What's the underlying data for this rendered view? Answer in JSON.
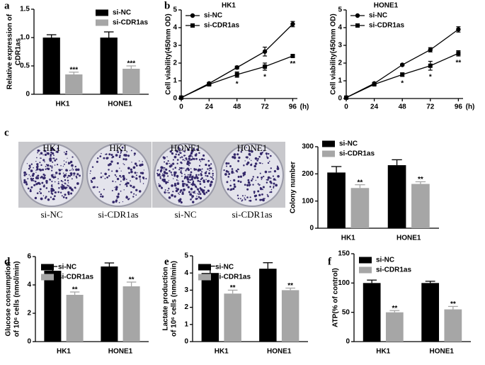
{
  "chart_data": [
    {
      "type": "bar",
      "panel": "a",
      "ylabel": [
        "Relative expression of",
        "CDR1as"
      ],
      "categories": [
        "HK1",
        "HONE1"
      ],
      "series": [
        {
          "name": "si-NC",
          "color": "#000000",
          "values": [
            1.0,
            1.0
          ],
          "errors": [
            0.05,
            0.1
          ]
        },
        {
          "name": "si-CDR1as",
          "color": "#a6a6a6",
          "values": [
            0.35,
            0.45
          ],
          "errors": [
            0.04,
            0.05
          ],
          "significance": [
            "***",
            "***"
          ]
        }
      ],
      "ylim": [
        0,
        1.5
      ],
      "yticks": [
        0,
        0.5,
        {
          "value": 1,
          "label": "1.0"
        },
        1.5
      ]
    },
    {
      "type": "line",
      "panel": "b",
      "title": "HK1",
      "ylabel": [
        "Cell viability(450nm OD)"
      ],
      "xlabel": "(h)",
      "x": [
        0,
        24,
        48,
        72,
        96
      ],
      "series": [
        {
          "name": "si-NC",
          "color": "#000000",
          "marker": "circle",
          "values": [
            0.05,
            0.85,
            1.75,
            2.65,
            4.2
          ],
          "errors": [
            0.05,
            0.06,
            0.08,
            0.25,
            0.15
          ]
        },
        {
          "name": "si-CDR1as",
          "color": "#000000",
          "marker": "square",
          "values": [
            0.05,
            0.8,
            1.35,
            1.8,
            2.4
          ],
          "errors": [
            0.04,
            0.05,
            0.15,
            0.2,
            0.05
          ],
          "significance": [
            null,
            null,
            "*",
            "*",
            "**"
          ]
        }
      ],
      "xlim": [
        0,
        100
      ],
      "xticks": [
        0,
        24,
        48,
        72,
        96
      ],
      "ylim": [
        0,
        5
      ],
      "yticks": [
        0,
        1,
        2,
        3,
        4,
        5
      ]
    },
    {
      "type": "line",
      "title": "HONE1",
      "ylabel": [
        "Cell viability(450nm OD)"
      ],
      "xlabel": "(h)",
      "x": [
        0,
        24,
        48,
        72,
        96
      ],
      "series": [
        {
          "name": "si-NC",
          "color": "#000000",
          "marker": "circle",
          "values": [
            0.05,
            0.85,
            1.9,
            2.75,
            3.9
          ],
          "errors": [
            0.04,
            0.06,
            0.05,
            0.12,
            0.15
          ]
        },
        {
          "name": "si-CDR1as",
          "color": "#000000",
          "marker": "square",
          "values": [
            0.05,
            0.8,
            1.35,
            1.85,
            2.55
          ],
          "errors": [
            0.04,
            0.05,
            0.1,
            0.25,
            0.15
          ],
          "significance": [
            null,
            null,
            "*",
            "*",
            "**"
          ]
        }
      ],
      "xlim": [
        0,
        100
      ],
      "xticks": [
        0,
        24,
        48,
        72,
        96
      ],
      "ylim": [
        0,
        5
      ],
      "yticks": [
        0,
        1,
        2,
        3,
        4,
        5
      ]
    },
    {
      "type": "image",
      "panel": "c",
      "top_labels": [
        "HK1",
        "HK1",
        "HONE1",
        "HONE1"
      ],
      "bottom_labels": [
        "si-NC",
        "si-CDR1as",
        "si-NC",
        "si-CDR1as"
      ]
    },
    {
      "type": "bar",
      "ylabel": [
        "Colony number"
      ],
      "categories": [
        "HK1",
        "HONE1"
      ],
      "series": [
        {
          "name": "si-NC",
          "color": "#000000",
          "values": [
            205,
            232
          ],
          "errors": [
            22,
            20
          ]
        },
        {
          "name": "si-CDR1as",
          "color": "#a6a6a6",
          "values": [
            148,
            163
          ],
          "errors": [
            12,
            8
          ],
          "significance": [
            "**",
            "**"
          ]
        }
      ],
      "ylim": [
        0,
        300
      ],
      "yticks": [
        0,
        100,
        200,
        300
      ]
    },
    {
      "type": "bar",
      "panel": "d",
      "ylabel": [
        "Glucose consumption",
        "of 10⁶ cells (nmol/min)"
      ],
      "categories": [
        "HK1",
        "HONE1"
      ],
      "series": [
        {
          "name": "si-NC",
          "color": "#000000",
          "values": [
            5.0,
            5.3
          ],
          "errors": [
            0.3,
            0.25
          ]
        },
        {
          "name": "si-CDR1as",
          "color": "#a6a6a6",
          "values": [
            3.3,
            3.9
          ],
          "errors": [
            0.2,
            0.3
          ],
          "significance": [
            "**",
            "**"
          ]
        }
      ],
      "ylim": [
        0,
        6
      ],
      "yticks": [
        0,
        2,
        4,
        6
      ]
    },
    {
      "type": "bar",
      "panel": "e",
      "ylabel": [
        "Lactate production",
        "of 10⁶ cells (nmol/min)"
      ],
      "categories": [
        "HK1",
        "HONE1"
      ],
      "series": [
        {
          "name": "si-NC",
          "color": "#000000",
          "values": [
            4.0,
            4.25
          ],
          "errors": [
            0.4,
            0.35
          ]
        },
        {
          "name": "si-CDR1as",
          "color": "#a6a6a6",
          "values": [
            2.8,
            3.0
          ],
          "errors": [
            0.2,
            0.12
          ],
          "significance": [
            "**",
            "**"
          ]
        }
      ],
      "ylim": [
        0,
        5
      ],
      "yticks": [
        0,
        1,
        2,
        3,
        4,
        5
      ]
    },
    {
      "type": "bar",
      "panel": "f",
      "ylabel": [
        "ATP(% of control)"
      ],
      "categories": [
        "HK1",
        "HONE1"
      ],
      "series": [
        {
          "name": "si-NC",
          "color": "#000000",
          "values": [
            100,
            100
          ],
          "errors": [
            5,
            3
          ]
        },
        {
          "name": "si-CDR1as",
          "color": "#a6a6a6",
          "values": [
            50,
            55
          ],
          "errors": [
            3,
            5
          ],
          "significance": [
            "**",
            "**"
          ]
        }
      ],
      "ylim": [
        0,
        150
      ],
      "yticks": [
        0,
        50,
        100,
        150
      ]
    }
  ]
}
